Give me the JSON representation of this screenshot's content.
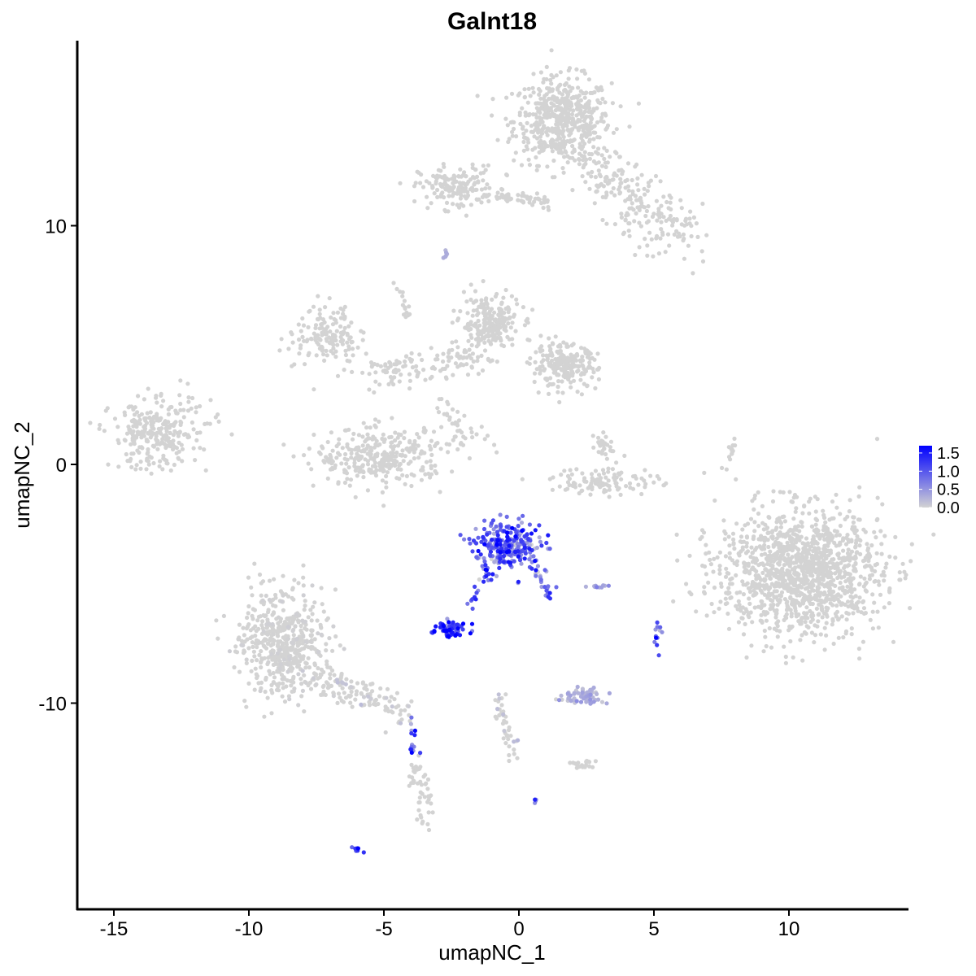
{
  "chart_data": {
    "type": "scatter",
    "title": "Galnt18",
    "xlabel": "umapNC_1",
    "ylabel": "umapNC_2",
    "xlim": [
      -16.4,
      14.4
    ],
    "ylim": [
      -18.3,
      17.6
    ],
    "xticks": [
      "-15",
      "-10",
      "-5",
      "0",
      "5",
      "10"
    ],
    "xtick_values": [
      -15,
      -10,
      -5,
      0,
      5,
      10
    ],
    "yticks": [
      "-10",
      "0",
      "10"
    ],
    "ytick_values": [
      -10,
      0,
      10
    ],
    "grid": false,
    "legend": {
      "placement": "right",
      "type": "colorbar",
      "labels": [
        "1.5",
        "1.0",
        "0.5",
        "0.0"
      ],
      "values": [
        1.5,
        1.0,
        0.5,
        0.0
      ],
      "min": 0,
      "max": 1.7,
      "low_color": "#D3D3D3",
      "high_color": "#0000FF"
    },
    "clusters": [
      {
        "cx": 1.6,
        "cy": 14.4,
        "sx": 0.9,
        "sy": 0.9,
        "n": 550,
        "expr": 0
      },
      {
        "x0": 2.5,
        "y0": 12.8,
        "x1": 5.8,
        "y1": 9.6,
        "spread": 0.6,
        "n": 220,
        "expr": 0
      },
      {
        "cx": -2.3,
        "cy": 11.6,
        "sx": 0.7,
        "sy": 0.45,
        "n": 160,
        "expr": 0
      },
      {
        "x0": -1.2,
        "y0": 11.3,
        "x1": 1.2,
        "y1": 11.0,
        "spread": 0.15,
        "n": 50,
        "expr": 0
      },
      {
        "cx": -7.1,
        "cy": 5.4,
        "sx": 0.6,
        "sy": 0.6,
        "n": 150,
        "expr": 0
      },
      {
        "cx": -1.1,
        "cy": 5.9,
        "sx": 0.55,
        "sy": 0.6,
        "n": 230,
        "expr": 0
      },
      {
        "cx": 1.7,
        "cy": 4.1,
        "sx": 0.6,
        "sy": 0.45,
        "n": 220,
        "expr": 0
      },
      {
        "x0": -5.5,
        "y0": 3.9,
        "x1": -1.5,
        "y1": 4.5,
        "spread": 0.35,
        "n": 120,
        "expr": 0
      },
      {
        "cx": -5.1,
        "cy": 0.3,
        "sx": 1.2,
        "sy": 0.6,
        "n": 320,
        "expr": 0
      },
      {
        "cx": -13.5,
        "cy": 1.2,
        "sx": 0.8,
        "sy": 0.7,
        "n": 260,
        "expr": 0
      },
      {
        "cx": 3.2,
        "cy": -0.7,
        "sx": 1.0,
        "sy": 0.3,
        "n": 110,
        "expr": 0
      },
      {
        "cx": 10.4,
        "cy": -4.5,
        "sx": 1.5,
        "sy": 1.3,
        "n": 1300,
        "expr": 0
      },
      {
        "cx": -8.8,
        "cy": -7.5,
        "sx": 0.8,
        "sy": 1.1,
        "n": 520,
        "expr": 0.02
      },
      {
        "x0": -7.5,
        "y0": -8.8,
        "x1": -4.2,
        "y1": -10.4,
        "spread": 0.3,
        "n": 130,
        "expr": 0.1
      },
      {
        "x0": -3.8,
        "y0": -12.5,
        "x1": -3.4,
        "y1": -15.2,
        "spread": 0.2,
        "n": 50,
        "expr": 0
      },
      {
        "cx": -0.4,
        "cy": -3.4,
        "sx": 0.6,
        "sy": 0.5,
        "n": 260,
        "expr": 0.9
      },
      {
        "x0": 0.6,
        "y0": -4.2,
        "x1": 1.2,
        "y1": -5.6,
        "spread": 0.15,
        "n": 25,
        "expr": 0.7
      },
      {
        "x0": -1.8,
        "y0": -6.0,
        "x1": -1.0,
        "y1": -4.3,
        "spread": 0.12,
        "n": 18,
        "expr": 1.0
      },
      {
        "cx": -2.4,
        "cy": -6.9,
        "sx": 0.35,
        "sy": 0.15,
        "n": 70,
        "expr": 1.3
      },
      {
        "cx": 2.3,
        "cy": -9.7,
        "sx": 0.35,
        "sy": 0.15,
        "n": 70,
        "expr": 0.25
      },
      {
        "x0": -0.8,
        "y0": -9.5,
        "x1": -0.2,
        "y1": -12.3,
        "spread": 0.12,
        "n": 40,
        "expr": 0.15
      },
      {
        "x0": -4.0,
        "y0": -10.6,
        "x1": -3.9,
        "y1": -12.3,
        "spread": 0.1,
        "n": 15,
        "expr": 1.0
      },
      {
        "cx": 2.4,
        "cy": -12.6,
        "sx": 0.25,
        "sy": 0.12,
        "n": 20,
        "expr": 0
      },
      {
        "cx": 5.1,
        "cy": -7.3,
        "sx": 0.1,
        "sy": 0.3,
        "n": 12,
        "expr": 0.9
      },
      {
        "cx": 2.9,
        "cy": -5.1,
        "sx": 0.25,
        "sy": 0.05,
        "n": 10,
        "expr": 0.4
      },
      {
        "cx": -6.0,
        "cy": -16.1,
        "sx": 0.1,
        "sy": 0.05,
        "n": 8,
        "expr": 1.1
      },
      {
        "cx": 0.6,
        "cy": -14.1,
        "sx": 0.05,
        "sy": 0.05,
        "n": 4,
        "expr": 0.9
      },
      {
        "x0": 7.9,
        "y0": 0.9,
        "x1": 7.7,
        "y1": -0.4,
        "spread": 0.08,
        "n": 14,
        "expr": 0
      },
      {
        "x0": 3.0,
        "y0": 1.3,
        "x1": 3.3,
        "y1": 0.4,
        "spread": 0.15,
        "n": 30,
        "expr": 0
      },
      {
        "x0": -4.5,
        "y0": 7.5,
        "x1": -4.0,
        "y1": 6.0,
        "spread": 0.1,
        "n": 15,
        "expr": 0
      },
      {
        "x0": -2.6,
        "y0": 8.9,
        "x1": -2.8,
        "y1": 8.6,
        "spread": 0.05,
        "n": 6,
        "expr": 0.2
      },
      {
        "x0": -3.0,
        "y0": 2.5,
        "x1": -1.5,
        "y1": 0.7,
        "spread": 0.3,
        "n": 40,
        "expr": 0
      },
      {
        "x0": -12.8,
        "y0": 2.8,
        "x1": -11.2,
        "y1": 2.0,
        "spread": 0.3,
        "n": 20,
        "expr": 0
      }
    ]
  }
}
